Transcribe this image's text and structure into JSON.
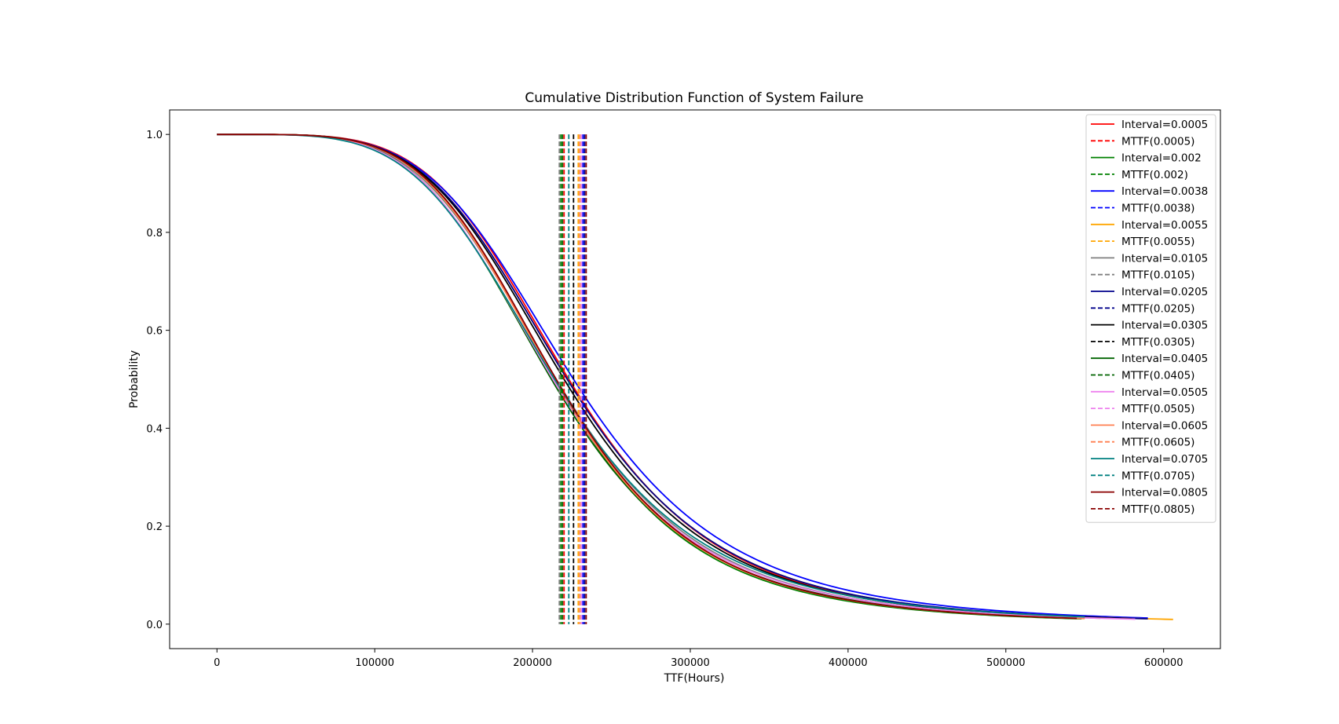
{
  "chart_data": {
    "type": "line",
    "title": "Cumulative Distribution Function of System Failure",
    "xlabel": "TTF(Hours)",
    "ylabel": "Probability",
    "xlim": [
      -30000,
      636000
    ],
    "ylim": [
      -0.05,
      1.05
    ],
    "xticks": [
      0,
      100000,
      200000,
      300000,
      400000,
      500000,
      600000
    ],
    "xtick_labels": [
      "0",
      "100000",
      "200000",
      "300000",
      "400000",
      "500000",
      "600000"
    ],
    "yticks": [
      0.0,
      0.2,
      0.4,
      0.6,
      0.8,
      1.0
    ],
    "ytick_labels": [
      "0.0",
      "0.2",
      "0.4",
      "0.6",
      "0.8",
      "1.0"
    ],
    "grid": false,
    "legend_position": "top-right",
    "series": [
      {
        "name": "Interval=0.0005",
        "mttf_name": "MTTF(0.0005)",
        "color": "#ff0000",
        "mttf": 220000,
        "median": 223000,
        "scale": 64000,
        "xmax": 545000
      },
      {
        "name": "Interval=0.002",
        "mttf_name": "MTTF(0.002)",
        "color": "#008000",
        "mttf": 218000,
        "median": 214000,
        "scale": 60000,
        "xmax": 548000
      },
      {
        "name": "Interval=0.0038",
        "mttf_name": "MTTF(0.0038)",
        "color": "#0000ff",
        "mttf": 232000,
        "median": 226000,
        "scale": 67000,
        "xmax": 590000
      },
      {
        "name": "Interval=0.0055",
        "mttf_name": "MTTF(0.0055)",
        "color": "#ffa500",
        "mttf": 229000,
        "median": 222000,
        "scale": 65000,
        "xmax": 606000
      },
      {
        "name": "Interval=0.0105",
        "mttf_name": "MTTF(0.0105)",
        "color": "#808080",
        "mttf": 217000,
        "median": 215000,
        "scale": 63000,
        "xmax": 560000
      },
      {
        "name": "Interval=0.0205",
        "mttf_name": "MTTF(0.0205)",
        "color": "#00008b",
        "mttf": 233000,
        "median": 222000,
        "scale": 65000,
        "xmax": 590000
      },
      {
        "name": "Interval=0.0305",
        "mttf_name": "MTTF(0.0305)",
        "color": "#000000",
        "mttf": 226000,
        "median": 220000,
        "scale": 64000,
        "xmax": 580000
      },
      {
        "name": "Interval=0.0405",
        "mttf_name": "MTTF(0.0405)",
        "color": "#006400",
        "mttf": 219000,
        "median": 212000,
        "scale": 62000,
        "xmax": 545000
      },
      {
        "name": "Interval=0.0505",
        "mttf_name": "MTTF(0.0505)",
        "color": "#ee82ee",
        "mttf": 231000,
        "median": 213000,
        "scale": 63000,
        "xmax": 582000
      },
      {
        "name": "Interval=0.0605",
        "mttf_name": "MTTF(0.0605)",
        "color": "#ff7f50",
        "mttf": 230000,
        "median": 214000,
        "scale": 61000,
        "xmax": 550000
      },
      {
        "name": "Interval=0.0705",
        "mttf_name": "MTTF(0.0705)",
        "color": "#008080",
        "mttf": 223000,
        "median": 214000,
        "scale": 65000,
        "xmax": 550000
      },
      {
        "name": "Interval=0.0805",
        "mttf_name": "MTTF(0.0805)",
        "color": "#8b0000",
        "mttf": 234000,
        "median": 215000,
        "scale": 61000,
        "xmax": 545000
      }
    ]
  }
}
